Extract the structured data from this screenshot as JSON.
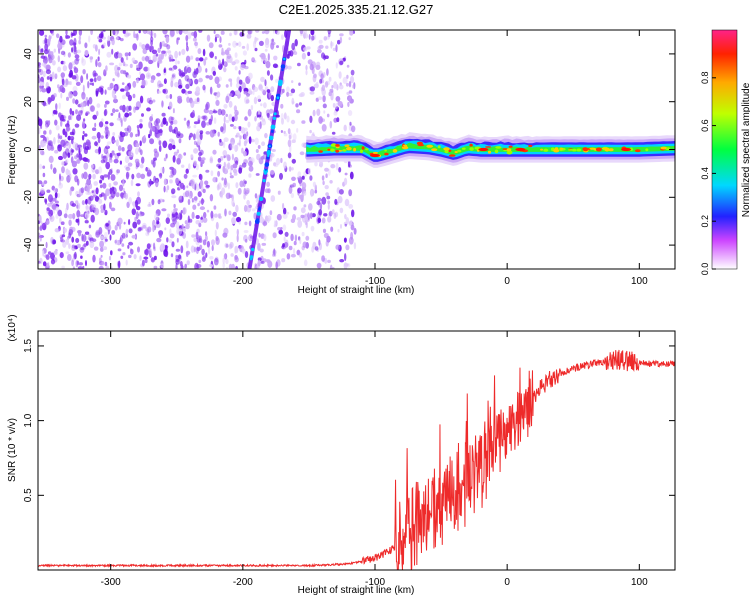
{
  "figure": {
    "title": "C2E1.2025.335.21.12.G27"
  },
  "chart_data": [
    {
      "type": "heatmap",
      "xlabel": "Height of straight line (km)",
      "ylabel": "Frequency (Hz)",
      "xlim": [
        -355,
        127
      ],
      "ylim": [
        -50,
        50
      ],
      "xticks": [
        -300,
        -200,
        -100,
        0,
        100
      ],
      "xtick_labels": [
        "-300",
        "-200",
        "-100",
        "0",
        "100"
      ],
      "yticks": [
        -40,
        -20,
        0,
        20,
        40
      ],
      "ytick_labels": [
        "-40",
        "-20",
        "0",
        "20",
        "40"
      ],
      "noise_region_x": [
        -355,
        -115
      ],
      "streak": {
        "x_at_bottom": -195,
        "x_at_top": -165
      },
      "signal_center_freq": [
        [
          -150,
          0
        ],
        [
          -130,
          0.5
        ],
        [
          -110,
          0.5
        ],
        [
          -100,
          -2.5
        ],
        [
          -90,
          -1
        ],
        [
          -75,
          1.5
        ],
        [
          -60,
          1
        ],
        [
          -50,
          0
        ],
        [
          -40,
          -1.5
        ],
        [
          -30,
          0.5
        ],
        [
          -20,
          0
        ],
        [
          -10,
          0
        ],
        [
          0,
          0
        ],
        [
          20,
          0
        ],
        [
          60,
          0
        ],
        [
          100,
          0
        ],
        [
          127,
          0.5
        ]
      ],
      "colorbar": {
        "label": "Normalized spectral amplitude",
        "range": [
          0,
          1
        ],
        "ticks": [
          0.0,
          0.2,
          0.4,
          0.6,
          0.8
        ],
        "tick_labels": [
          "0.0",
          "0.2",
          "0.4",
          "0.6",
          "0.8"
        ]
      }
    },
    {
      "type": "line",
      "xlabel": "Height of straight line (km)",
      "ylabel": "SNR (10 * v/v)",
      "multiplier": "(x10⁴)",
      "xlim": [
        -355,
        127
      ],
      "ylim": [
        0,
        1.6
      ],
      "xticks": [
        -300,
        -200,
        -100,
        0,
        100
      ],
      "xtick_labels": [
        "-300",
        "-200",
        "-100",
        "0",
        "100"
      ],
      "yticks": [
        0.5,
        1.0,
        1.5
      ],
      "ytick_labels": [
        "0.5",
        "1.0",
        "1.5"
      ],
      "color": "#ee2a2a",
      "series": [
        {
          "name": "SNR",
          "points": [
            [
              -355,
              0.03
            ],
            [
              -300,
              0.03
            ],
            [
              -250,
              0.03
            ],
            [
              -200,
              0.03
            ],
            [
              -150,
              0.03
            ],
            [
              -120,
              0.04
            ],
            [
              -100,
              0.08
            ],
            [
              -90,
              0.12
            ],
            [
              -80,
              0.2
            ],
            [
              -70,
              0.3
            ],
            [
              -60,
              0.38
            ],
            [
              -50,
              0.42
            ],
            [
              -40,
              0.52
            ],
            [
              -30,
              0.58
            ],
            [
              -20,
              0.68
            ],
            [
              -10,
              0.85
            ],
            [
              0,
              0.92
            ],
            [
              10,
              1.05
            ],
            [
              20,
              1.16
            ],
            [
              30,
              1.26
            ],
            [
              40,
              1.32
            ],
            [
              50,
              1.35
            ],
            [
              60,
              1.37
            ],
            [
              70,
              1.39
            ],
            [
              80,
              1.41
            ],
            [
              90,
              1.4
            ],
            [
              100,
              1.39
            ],
            [
              110,
              1.38
            ],
            [
              127,
              1.38
            ]
          ]
        }
      ]
    }
  ]
}
